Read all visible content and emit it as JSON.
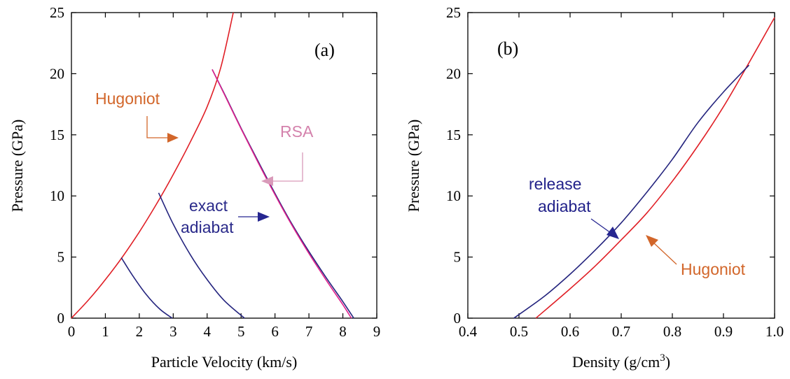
{
  "colors": {
    "hugoniot_line": "#e01f26",
    "exact_line": "#24247e",
    "rsa_line": "#e0208c",
    "hugoniot_text": "#d2662a",
    "rsa_text": "#d482ac",
    "exact_text": "#2a2a8a",
    "release_text": "#22228a",
    "hugoniot_arrow": "#d2662a",
    "rsa_arrow": "#d99ab9",
    "exact_arrow": "#262690"
  },
  "chart_data": [
    {
      "type": "line",
      "panel_label": "(a)",
      "xlabel": "Particle Velocity (km/s)",
      "ylabel": "Pressure (GPa)",
      "xlim": [
        0,
        9
      ],
      "ylim": [
        0,
        25
      ],
      "xticks": [
        0,
        1,
        2,
        3,
        4,
        5,
        6,
        7,
        8,
        9
      ],
      "yticks": [
        0,
        5,
        10,
        15,
        20,
        25
      ],
      "series": [
        {
          "name": "Hugoniot",
          "color_key": "hugoniot_line",
          "x": [
            0,
            0.5,
            1.0,
            1.5,
            2.0,
            2.5,
            3.0,
            3.5,
            4.0,
            4.4,
            4.77
          ],
          "y": [
            0,
            1.48,
            3.15,
            5.0,
            7.05,
            9.3,
            11.75,
            14.4,
            17.3,
            20.5,
            25.0
          ]
        },
        {
          "name": "exact adiabat",
          "color_key": "exact_line",
          "x": [
            1.47,
            1.8,
            2.2,
            2.6,
            2.97,
            2.57,
            3.0,
            3.5,
            4.0,
            4.5,
            5.1,
            4.15,
            4.5,
            5.0,
            5.5,
            6.0,
            6.5,
            7.0,
            7.5,
            8.0,
            8.32
          ],
          "y": [
            4.95,
            3.5,
            1.95,
            0.75,
            0,
            10.25,
            7.7,
            5.2,
            3.15,
            1.45,
            0,
            20.35,
            18.4,
            15.55,
            12.85,
            10.2,
            7.7,
            5.45,
            3.35,
            1.35,
            0
          ],
          "segments": [
            [
              0,
              5
            ],
            [
              5,
              11
            ],
            [
              11,
              21
            ]
          ]
        },
        {
          "name": "RSA",
          "color_key": "rsa_line",
          "x": [
            4.15,
            4.5,
            5.0,
            5.5,
            6.0,
            6.5,
            7.0,
            7.5,
            8.0,
            8.25
          ],
          "y": [
            20.35,
            18.35,
            15.5,
            12.75,
            10.1,
            7.6,
            5.3,
            3.15,
            1.1,
            0
          ]
        }
      ],
      "annotations": [
        {
          "text": "Hugoniot",
          "color_key": "hugoniot_text"
        },
        {
          "text": "RSA",
          "color_key": "rsa_text"
        },
        {
          "text": "exact",
          "color_key": "exact_text"
        },
        {
          "text": "adiabat",
          "color_key": "exact_text"
        }
      ]
    },
    {
      "type": "line",
      "panel_label": "(b)",
      "xlabel": "Density (g/cm",
      "xlabel_superscript": "3",
      "xlabel_suffix": ")",
      "ylabel": "Pressure (GPa)",
      "xlim": [
        0.4,
        1.0
      ],
      "ylim": [
        0,
        25
      ],
      "xticks": [
        "0.4",
        "0.5",
        "0.6",
        "0.7",
        "0.8",
        "0.9",
        "1.0"
      ],
      "yticks": [
        0,
        5,
        10,
        15,
        20,
        25
      ],
      "series": [
        {
          "name": "Hugoniot",
          "color_key": "hugoniot_line",
          "x": [
            0.533,
            0.6,
            0.65,
            0.7,
            0.75,
            0.8,
            0.85,
            0.9,
            0.95,
            1.0
          ],
          "y": [
            0,
            2.4,
            4.3,
            6.4,
            8.6,
            11.2,
            14.1,
            17.3,
            20.9,
            24.6
          ]
        },
        {
          "name": "release adiabat",
          "color_key": "exact_line",
          "x": [
            0.49,
            0.55,
            0.6,
            0.65,
            0.7,
            0.75,
            0.8,
            0.85,
            0.9,
            0.95
          ],
          "y": [
            0,
            1.8,
            3.6,
            5.6,
            7.8,
            10.3,
            13.0,
            16.0,
            18.5,
            20.7
          ]
        }
      ],
      "annotations": [
        {
          "text": "release",
          "color_key": "release_text"
        },
        {
          "text": "adiabat",
          "color_key": "release_text"
        },
        {
          "text": "Hugoniot",
          "color_key": "hugoniot_text"
        }
      ]
    }
  ]
}
